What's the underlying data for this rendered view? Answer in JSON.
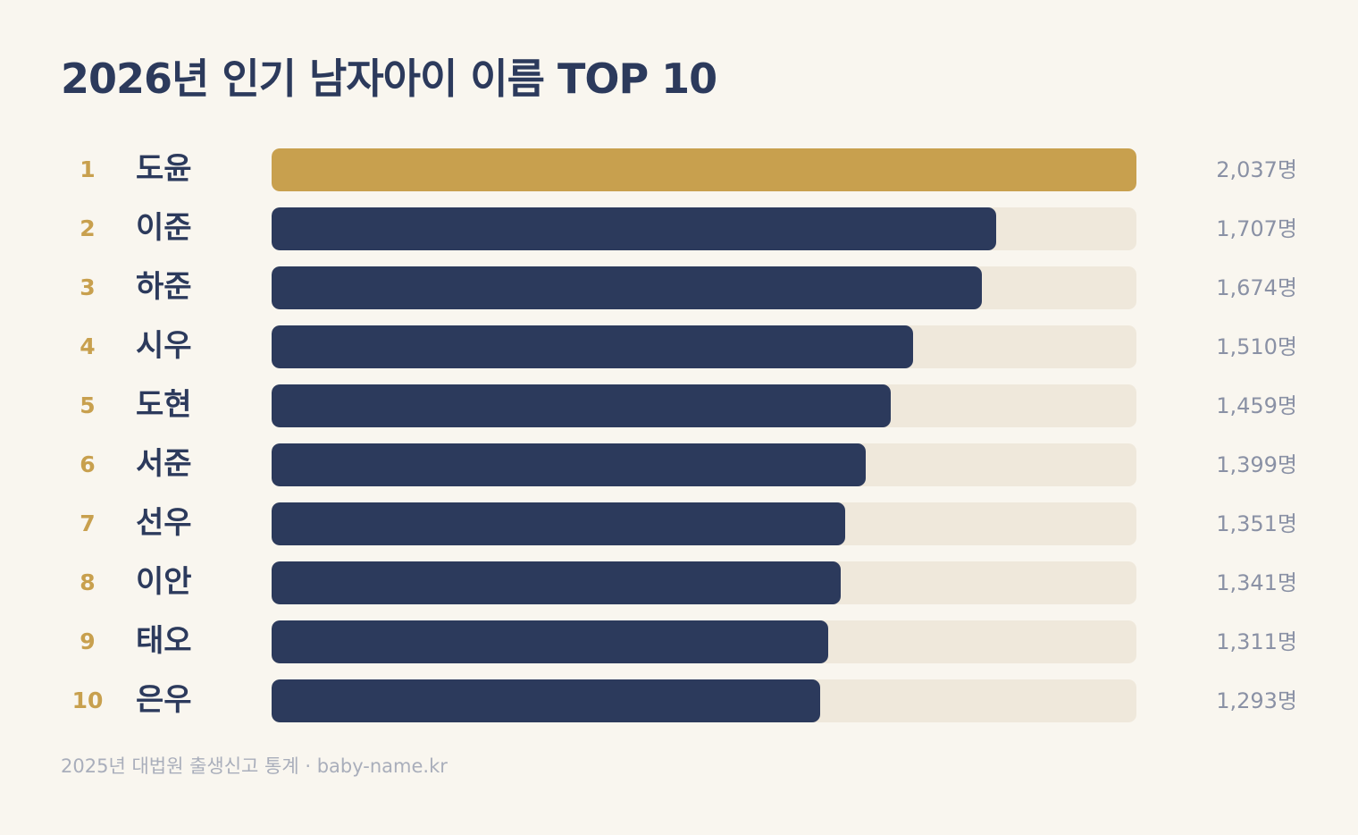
{
  "colors": {
    "background": "#f9f6ef",
    "title": "#2c3a5c",
    "rank": "#c8a04e",
    "bar_top": "#c8a04e",
    "bar": "#2c3a5c",
    "track": "#efe8db",
    "value": "#8a91a5",
    "source": "#a9aebb"
  },
  "chart_data": {
    "type": "bar",
    "orientation": "horizontal",
    "title": "2026년 인기 남자아이 이름 TOP 10",
    "unit": "명",
    "ranks": [
      "1",
      "2",
      "3",
      "4",
      "5",
      "6",
      "7",
      "8",
      "9",
      "10"
    ],
    "categories": [
      "도윤",
      "이준",
      "하준",
      "시우",
      "도현",
      "서준",
      "선우",
      "이안",
      "태오",
      "은우"
    ],
    "values": [
      2037,
      1707,
      1674,
      1510,
      1459,
      1399,
      1351,
      1341,
      1311,
      1293
    ],
    "value_labels": [
      "2,037명",
      "1,707명",
      "1,674명",
      "1,510명",
      "1,459명",
      "1,399명",
      "1,351명",
      "1,341명",
      "1,311명",
      "1,293명"
    ],
    "xlim": [
      0,
      2037
    ],
    "grid": false,
    "legend": "none",
    "source": "2025년 대법원 출생신고 통계 · baby-name.kr"
  }
}
